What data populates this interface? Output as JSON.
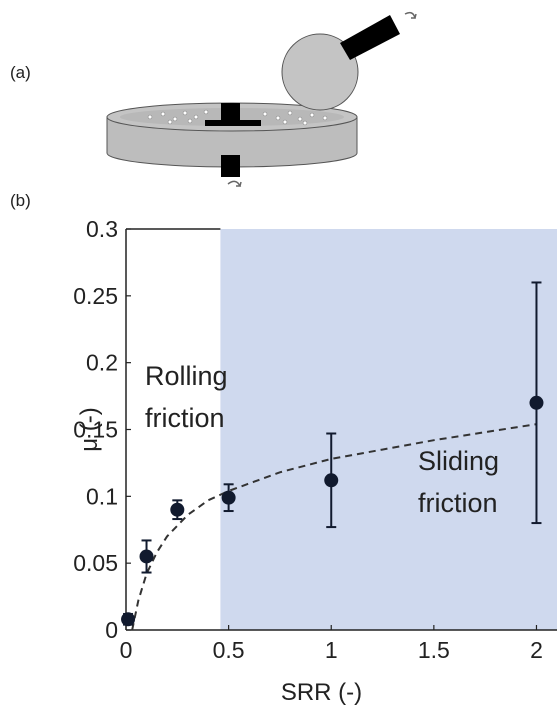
{
  "panels": {
    "a": "(a)",
    "b": "(b)"
  },
  "chart_data": {
    "type": "scatter",
    "x_label": "SRR (-)",
    "y_label": "μ (-)",
    "annotations": [
      [
        "Rolling",
        "friction"
      ],
      [
        "Sliding",
        "friction"
      ]
    ],
    "xlim": [
      0,
      2.1
    ],
    "ylim": [
      0,
      0.3
    ],
    "xticks": [
      0,
      0.5,
      1,
      1.5,
      2
    ],
    "yticks": [
      0,
      0.05,
      0.1,
      0.15,
      0.2,
      0.25,
      0.3
    ],
    "shaded_region": {
      "x": [
        0.46,
        2.1
      ],
      "color": "#cfd9ee"
    },
    "series": [
      {
        "color": "#111a2e",
        "x": [
          0.01,
          0.1,
          0.25,
          0.5,
          1,
          2
        ],
        "values": [
          0.008,
          0.055,
          0.09,
          0.099,
          0.112,
          0.17
        ],
        "errors": [
          0.004,
          0.012,
          0.007,
          0.01,
          0.035,
          0.09
        ]
      }
    ],
    "fit": {
      "color": "#333333",
      "x": [
        0.03,
        0.06,
        0.1,
        0.15,
        0.2,
        0.3,
        0.4,
        0.5,
        0.75,
        1,
        1.5,
        2
      ],
      "values": [
        0,
        0.022,
        0.042,
        0.058,
        0.07,
        0.086,
        0.097,
        0.104,
        0.118,
        0.128,
        0.142,
        0.154
      ]
    }
  }
}
